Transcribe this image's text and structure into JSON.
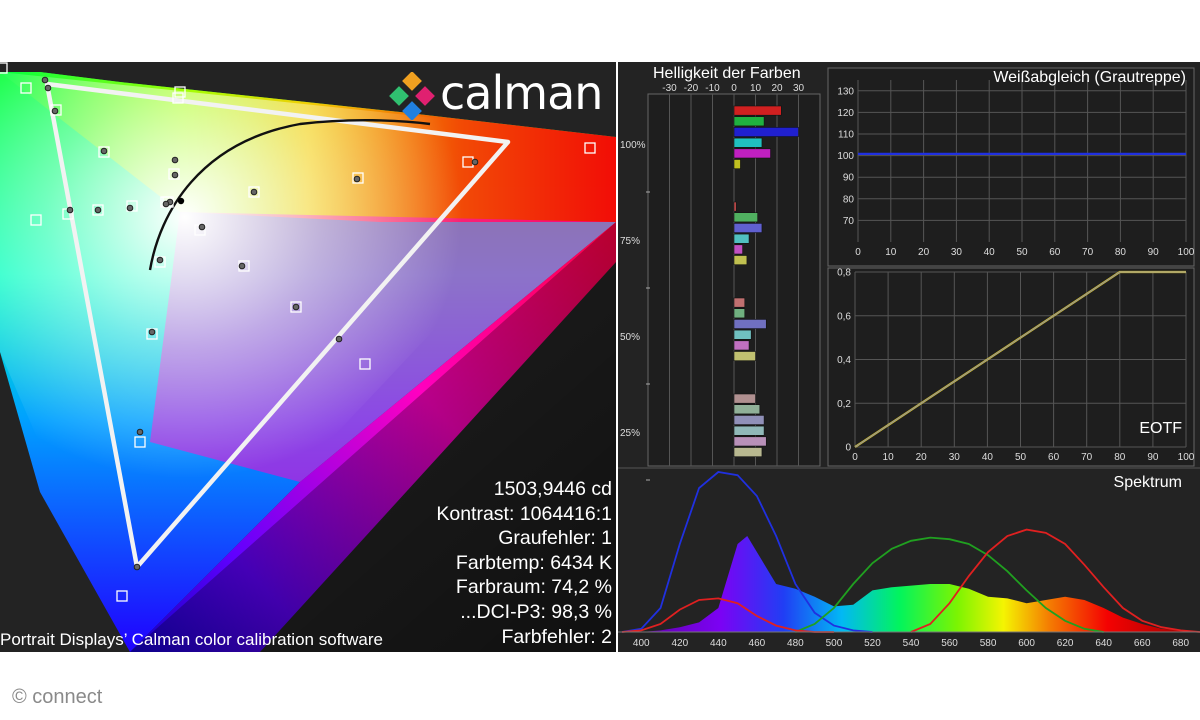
{
  "cie": {
    "readout": [
      "1503,9446 cd",
      "Kontrast: 1064416:1",
      "Graufehler: 1",
      "Farbtemp: 6434 K",
      "Farbraum: 74,2 %",
      "...DCI-P3: 98,3 %",
      "Farbfehler: 2"
    ],
    "caption": "Portrait Displays’ Calman color calibration software",
    "logo_text": "calman",
    "gamut_triangle": "white",
    "planckian_locus": "black"
  },
  "watermark": "© connect",
  "colors": {
    "panel_bg": "#232323",
    "red": "#e02020",
    "green": "#20a020",
    "blue": "#2030e0",
    "eotf_line": "#e8d020"
  },
  "chart_data": [
    {
      "type": "bar",
      "title": "Helligkeit der Farben",
      "x_ticks": [
        "-30",
        "-20",
        "-10",
        "0",
        "10",
        "20",
        "30"
      ],
      "xlim": [
        -40,
        40
      ],
      "y_ticks": [
        "100%",
        "75%",
        "50%",
        "25%"
      ],
      "groups": [
        {
          "level": "100%",
          "colors": [
            "#d02020",
            "#20b040",
            "#2020d0",
            "#20c0c0",
            "#c020c0",
            "#c0c020"
          ],
          "values": [
            22,
            14,
            30,
            13,
            17,
            3
          ]
        },
        {
          "level": "75%",
          "colors": [
            "#d05050",
            "#50b060",
            "#6060d0",
            "#50c0c0",
            "#c050c0",
            "#c0c050"
          ],
          "values": [
            1,
            11,
            13,
            7,
            4,
            6
          ]
        },
        {
          "level": "50%",
          "colors": [
            "#c07070",
            "#70b080",
            "#7070c0",
            "#70c0c0",
            "#c070c0",
            "#c0c070"
          ],
          "values": [
            5,
            5,
            15,
            8,
            7,
            10
          ]
        },
        {
          "level": "25%",
          "colors": [
            "#b09090",
            "#90b098",
            "#9090b8",
            "#90b8b8",
            "#b890b8",
            "#b8b890"
          ],
          "values": [
            10,
            12,
            14,
            14,
            15,
            13
          ]
        }
      ]
    },
    {
      "type": "line",
      "title": "Weißabgleich (Grautreppe)",
      "x": [
        0,
        10,
        20,
        30,
        40,
        50,
        60,
        70,
        80,
        90,
        100
      ],
      "series": [
        {
          "color": "#2030e0",
          "values": [
            100.8,
            100.8,
            100.8,
            100.8,
            100.8,
            100.8,
            100.8,
            100.8,
            100.8,
            100.8,
            100.8
          ]
        }
      ],
      "ylim": [
        60,
        135
      ],
      "y_ticks": [
        "130",
        "120",
        "110",
        "100",
        "90",
        "80",
        "70"
      ],
      "x_ticks": [
        "0",
        "10",
        "20",
        "30",
        "40",
        "50",
        "60",
        "70",
        "80",
        "90",
        "100"
      ]
    },
    {
      "type": "line",
      "title": "EOTF",
      "x": [
        0,
        10,
        20,
        30,
        40,
        50,
        60,
        70,
        80,
        90,
        100
      ],
      "series": [
        {
          "color": "#e8d020",
          "values": [
            0,
            0.1,
            0.2,
            0.3,
            0.4,
            0.5,
            0.6,
            0.7,
            0.8,
            0.8,
            0.8
          ]
        },
        {
          "color": "#909090",
          "values": [
            0,
            0.1,
            0.2,
            0.3,
            0.4,
            0.5,
            0.6,
            0.7,
            0.8,
            0.8,
            0.8
          ]
        }
      ],
      "ylim": [
        0,
        0.8
      ],
      "y_ticks": [
        "0,8",
        "0,6",
        "0,4",
        "0,2",
        "0"
      ],
      "x_ticks": [
        "0",
        "10",
        "20",
        "30",
        "40",
        "50",
        "60",
        "70",
        "80",
        "90",
        "100"
      ]
    },
    {
      "type": "area",
      "title": "Spektrum",
      "x": [
        390,
        400,
        410,
        420,
        430,
        440,
        450,
        455,
        460,
        470,
        480,
        490,
        500,
        510,
        520,
        530,
        540,
        550,
        560,
        570,
        580,
        590,
        600,
        610,
        620,
        630,
        640,
        650,
        660,
        670,
        680,
        690
      ],
      "measured": [
        0,
        0,
        0.01,
        0.03,
        0.06,
        0.15,
        0.55,
        0.6,
        0.5,
        0.3,
        0.27,
        0.22,
        0.16,
        0.17,
        0.26,
        0.28,
        0.29,
        0.3,
        0.3,
        0.27,
        0.22,
        0.21,
        0.18,
        0.2,
        0.22,
        0.2,
        0.15,
        0.09,
        0.05,
        0.02,
        0.01,
        0
      ],
      "series": [
        {
          "color": "#2030e0",
          "x": [
            390,
            400,
            410,
            420,
            430,
            440,
            450,
            460,
            470,
            480,
            490,
            500,
            510,
            520
          ],
          "values": [
            0,
            0.02,
            0.15,
            0.55,
            0.9,
            1.0,
            0.98,
            0.85,
            0.6,
            0.3,
            0.12,
            0.04,
            0.01,
            0
          ]
        },
        {
          "color": "#20a020",
          "x": [
            480,
            490,
            500,
            510,
            520,
            530,
            540,
            550,
            560,
            570,
            580,
            590,
            600,
            610,
            620,
            630,
            640
          ],
          "values": [
            0,
            0.05,
            0.15,
            0.3,
            0.43,
            0.52,
            0.57,
            0.59,
            0.58,
            0.55,
            0.48,
            0.38,
            0.26,
            0.15,
            0.07,
            0.02,
            0
          ]
        },
        {
          "color": "#e02020",
          "x": [
            390,
            400,
            410,
            420,
            430,
            440,
            450,
            460,
            470,
            480,
            490,
            500
          ],
          "values": [
            0,
            0.01,
            0.05,
            0.14,
            0.2,
            0.21,
            0.18,
            0.1,
            0.04,
            0.01,
            0,
            0
          ]
        },
        {
          "color": "#e02020",
          "x": [
            540,
            550,
            560,
            570,
            580,
            590,
            600,
            610,
            620,
            630,
            640,
            650,
            660,
            670,
            680,
            690
          ],
          "values": [
            0,
            0.05,
            0.18,
            0.35,
            0.5,
            0.6,
            0.64,
            0.62,
            0.55,
            0.42,
            0.28,
            0.15,
            0.07,
            0.03,
            0.01,
            0
          ]
        }
      ],
      "x_ticks": [
        "400",
        "420",
        "440",
        "460",
        "480",
        "500",
        "520",
        "540",
        "560",
        "580",
        "600",
        "620",
        "640",
        "660",
        "680"
      ]
    }
  ]
}
